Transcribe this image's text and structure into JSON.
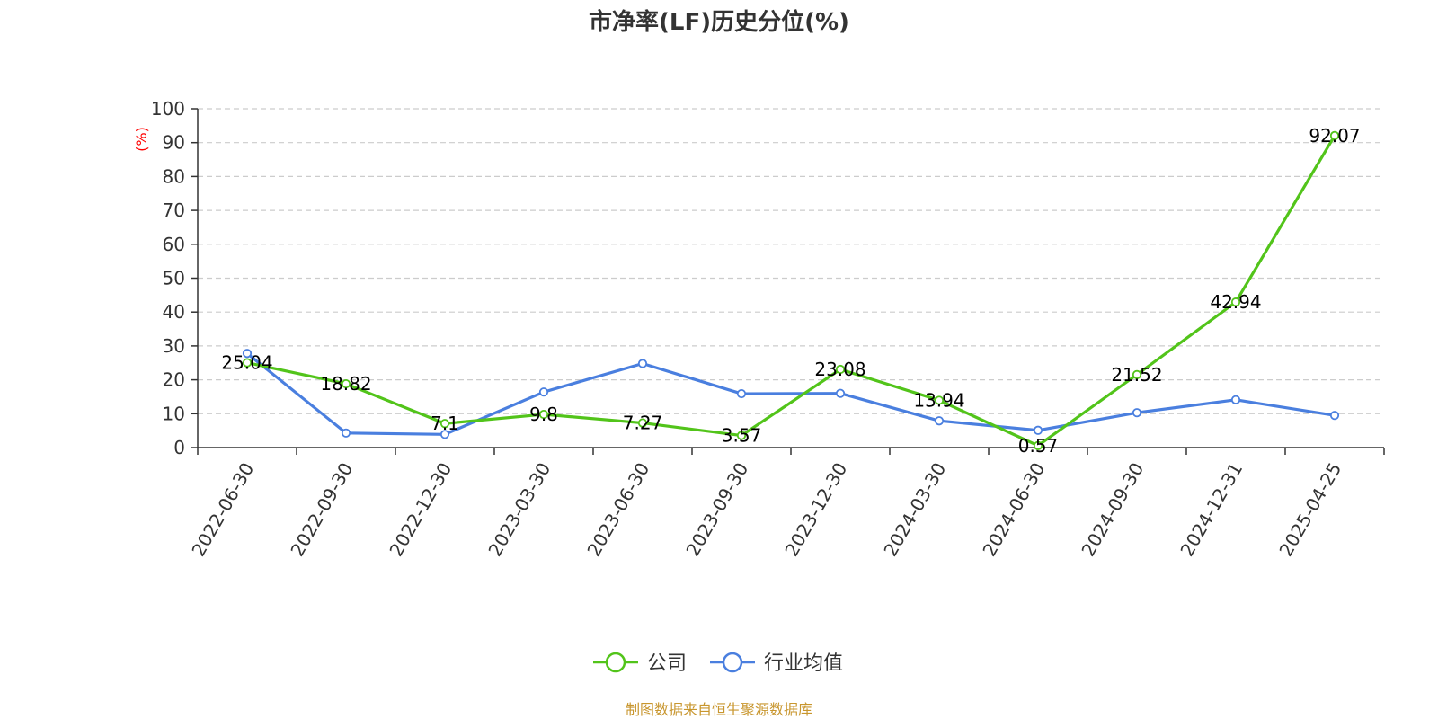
{
  "chart_data": {
    "type": "line",
    "title": "市净率(LF)历史分位(%)",
    "ylabel": "(%)",
    "ylim": [
      0,
      100
    ],
    "yticks": [
      0,
      10,
      20,
      30,
      40,
      50,
      60,
      70,
      80,
      90,
      100
    ],
    "categories": [
      "2022-06-30",
      "2022-09-30",
      "2022-12-30",
      "2023-03-30",
      "2023-06-30",
      "2023-09-30",
      "2023-12-30",
      "2024-03-30",
      "2024-06-30",
      "2024-09-30",
      "2024-12-31",
      "2025-04-25"
    ],
    "grid": true,
    "legend_position": "bottom-center",
    "series": [
      {
        "name": "公司",
        "color": "#52c41a",
        "values": [
          25.04,
          18.82,
          7.1,
          9.8,
          7.27,
          3.57,
          23.08,
          13.94,
          0.57,
          21.52,
          42.94,
          92.07
        ],
        "labels": [
          "25.04",
          "18.82",
          "7.1",
          "9.8",
          "7.27",
          "3.57",
          "23.08",
          "13.94",
          "0.57",
          "21.52",
          "42.94",
          "92.07"
        ]
      },
      {
        "name": "行业均值",
        "color": "#4a7fdf",
        "values": [
          27.8,
          4.3,
          3.9,
          16.4,
          24.8,
          15.9,
          16.0,
          7.9,
          5.1,
          10.3,
          14.1,
          9.5
        ]
      }
    ]
  },
  "source": {
    "text": "制图数据来自恒生聚源数据库",
    "color": "#c8962e"
  }
}
